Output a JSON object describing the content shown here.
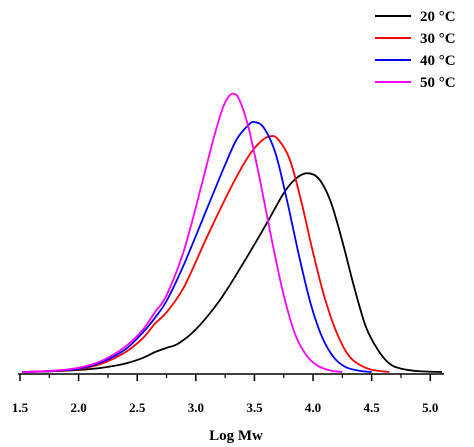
{
  "chart_data": {
    "type": "line",
    "title": "",
    "xlabel": "Log Mw",
    "ylabel": "",
    "xlim": [
      1.5,
      5.1
    ],
    "ylim": [
      0,
      1.0
    ],
    "xticks": [
      "1.5",
      "2.0",
      "2.5",
      "3.0",
      "3.5",
      "4.0",
      "4.5",
      "5.0"
    ],
    "grid": false,
    "legend": "top-right",
    "series": [
      {
        "name": "20 °C",
        "color": "#000000",
        "points": [
          [
            1.52,
            0.0
          ],
          [
            1.8,
            0.003
          ],
          [
            2.0,
            0.007
          ],
          [
            2.2,
            0.015
          ],
          [
            2.4,
            0.03
          ],
          [
            2.55,
            0.05
          ],
          [
            2.65,
            0.07
          ],
          [
            2.75,
            0.085
          ],
          [
            2.85,
            0.1
          ],
          [
            3.0,
            0.15
          ],
          [
            3.2,
            0.25
          ],
          [
            3.4,
            0.38
          ],
          [
            3.6,
            0.52
          ],
          [
            3.75,
            0.63
          ],
          [
            3.85,
            0.68
          ],
          [
            3.95,
            0.7
          ],
          [
            4.05,
            0.68
          ],
          [
            4.15,
            0.6
          ],
          [
            4.25,
            0.46
          ],
          [
            4.35,
            0.3
          ],
          [
            4.45,
            0.16
          ],
          [
            4.55,
            0.08
          ],
          [
            4.65,
            0.03
          ],
          [
            4.75,
            0.012
          ],
          [
            4.9,
            0.003
          ],
          [
            5.1,
            0.0
          ]
        ]
      },
      {
        "name": "30 °C",
        "color": "#ff0000",
        "points": [
          [
            1.52,
            0.0
          ],
          [
            1.8,
            0.003
          ],
          [
            2.0,
            0.01
          ],
          [
            2.2,
            0.03
          ],
          [
            2.4,
            0.07
          ],
          [
            2.55,
            0.12
          ],
          [
            2.65,
            0.17
          ],
          [
            2.75,
            0.21
          ],
          [
            2.9,
            0.3
          ],
          [
            3.1,
            0.48
          ],
          [
            3.3,
            0.65
          ],
          [
            3.45,
            0.76
          ],
          [
            3.55,
            0.81
          ],
          [
            3.63,
            0.83
          ],
          [
            3.7,
            0.82
          ],
          [
            3.8,
            0.75
          ],
          [
            3.9,
            0.6
          ],
          [
            4.0,
            0.42
          ],
          [
            4.1,
            0.26
          ],
          [
            4.2,
            0.14
          ],
          [
            4.3,
            0.06
          ],
          [
            4.4,
            0.025
          ],
          [
            4.5,
            0.008
          ],
          [
            4.65,
            0.0
          ]
        ]
      },
      {
        "name": "40 °C",
        "color": "#0000ff",
        "points": [
          [
            1.52,
            0.0
          ],
          [
            1.8,
            0.004
          ],
          [
            2.0,
            0.012
          ],
          [
            2.2,
            0.035
          ],
          [
            2.4,
            0.08
          ],
          [
            2.55,
            0.14
          ],
          [
            2.65,
            0.19
          ],
          [
            2.75,
            0.25
          ],
          [
            2.9,
            0.38
          ],
          [
            3.1,
            0.58
          ],
          [
            3.25,
            0.73
          ],
          [
            3.35,
            0.82
          ],
          [
            3.45,
            0.87
          ],
          [
            3.5,
            0.88
          ],
          [
            3.58,
            0.86
          ],
          [
            3.68,
            0.77
          ],
          [
            3.78,
            0.6
          ],
          [
            3.88,
            0.41
          ],
          [
            3.98,
            0.24
          ],
          [
            4.08,
            0.12
          ],
          [
            4.18,
            0.05
          ],
          [
            4.28,
            0.017
          ],
          [
            4.4,
            0.004
          ],
          [
            4.5,
            0.0
          ]
        ]
      },
      {
        "name": "50 °C",
        "color": "#ff00ff",
        "points": [
          [
            1.52,
            0.0
          ],
          [
            1.8,
            0.005
          ],
          [
            2.0,
            0.015
          ],
          [
            2.2,
            0.04
          ],
          [
            2.4,
            0.09
          ],
          [
            2.55,
            0.15
          ],
          [
            2.65,
            0.21
          ],
          [
            2.75,
            0.27
          ],
          [
            2.9,
            0.43
          ],
          [
            3.05,
            0.66
          ],
          [
            3.15,
            0.82
          ],
          [
            3.23,
            0.93
          ],
          [
            3.28,
            0.97
          ],
          [
            3.32,
            0.98
          ],
          [
            3.37,
            0.96
          ],
          [
            3.45,
            0.86
          ],
          [
            3.55,
            0.67
          ],
          [
            3.65,
            0.46
          ],
          [
            3.75,
            0.27
          ],
          [
            3.85,
            0.13
          ],
          [
            3.95,
            0.055
          ],
          [
            4.05,
            0.02
          ],
          [
            4.15,
            0.005
          ],
          [
            4.25,
            0.0
          ]
        ]
      }
    ]
  }
}
